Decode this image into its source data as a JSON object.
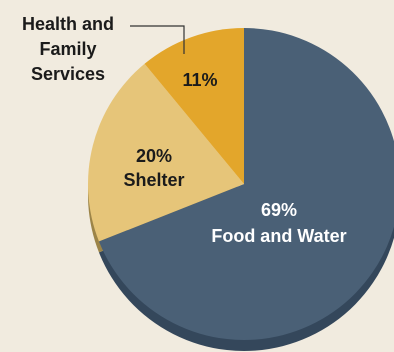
{
  "chart_data": {
    "type": "pie",
    "categories": [
      "Food and Water",
      "Shelter",
      "Health and Family Services"
    ],
    "values": [
      69,
      20,
      11
    ],
    "percent_labels": [
      "69%",
      "20%",
      "11%"
    ],
    "colors": [
      "#4a6076",
      "#e6c579",
      "#e3a62b"
    ],
    "side_colors": [
      "#34475b",
      "#9c8448",
      "#b68420"
    ],
    "callout_lines": [
      "Health and",
      "Family",
      "Services"
    ],
    "title": "",
    "label_colors": {
      "on_dark": "#ffffff",
      "on_light": "#1b1b1b"
    }
  }
}
